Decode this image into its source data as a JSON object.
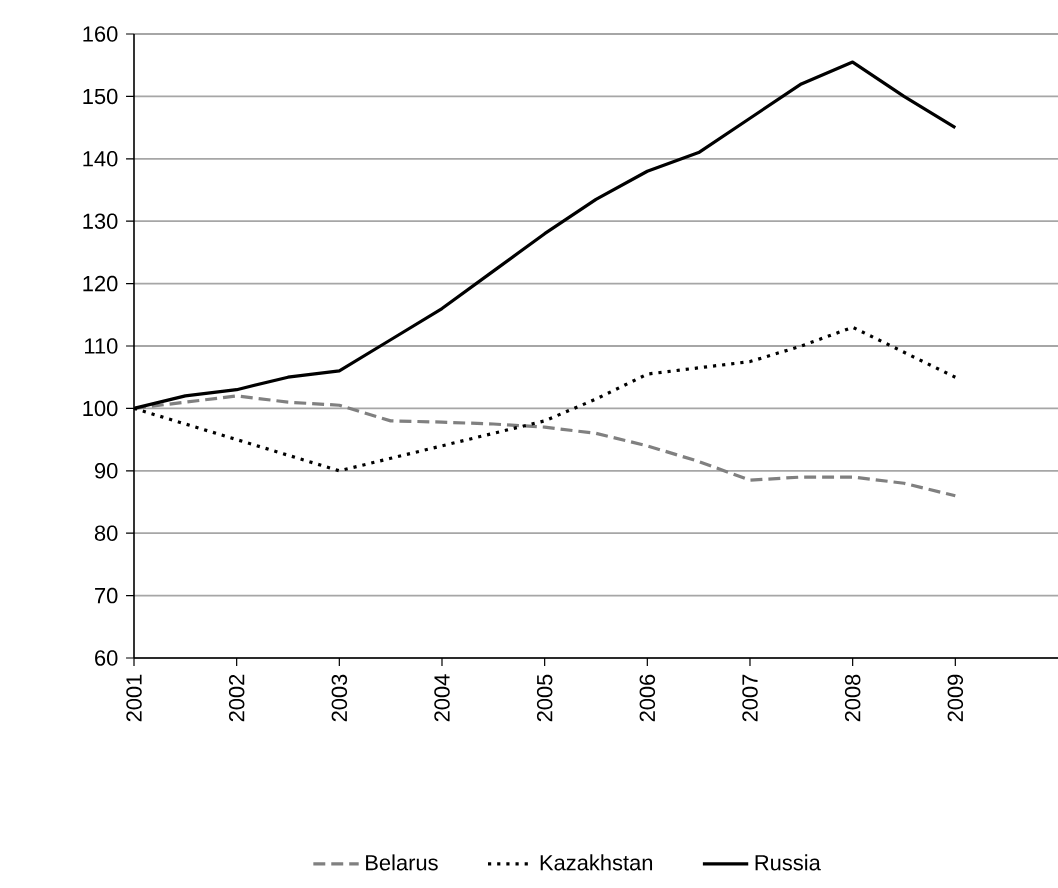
{
  "chart_data": {
    "type": "line",
    "x": [
      2001,
      2001.5,
      2002,
      2002.5,
      2003,
      2003.5,
      2004,
      2004.5,
      2005,
      2005.5,
      2006,
      2006.5,
      2007,
      2007.5,
      2008,
      2008.5,
      2009
    ],
    "series": [
      {
        "name": "Belarus",
        "color": "#808080",
        "line_style": "dashed",
        "values": [
          100,
          101,
          102,
          101,
          100.5,
          98,
          97.8,
          97.5,
          97,
          96,
          94,
          91.5,
          88.5,
          89,
          89,
          88,
          86
        ]
      },
      {
        "name": "Kazakhstan",
        "color": "#000000",
        "line_style": "dotted",
        "values": [
          100,
          97.5,
          95,
          92.5,
          90,
          92,
          94,
          96,
          98,
          101.5,
          105.5,
          106.5,
          107.5,
          110,
          113,
          109,
          105
        ]
      },
      {
        "name": "Russia",
        "color": "#000000",
        "line_style": "solid",
        "values": [
          100,
          102,
          103,
          105,
          106,
          111,
          116,
          122,
          128,
          133.5,
          138,
          141,
          146.5,
          152,
          155.5,
          150,
          145
        ]
      }
    ],
    "xlim": [
      2001,
      2010
    ],
    "xticks": [
      2001,
      2002,
      2003,
      2004,
      2005,
      2006,
      2007,
      2008,
      2009
    ],
    "ylim": [
      60,
      160
    ],
    "yticks": [
      60,
      70,
      80,
      90,
      100,
      110,
      120,
      130,
      140,
      150,
      160
    ],
    "grid": "y",
    "legend": "bottom"
  }
}
